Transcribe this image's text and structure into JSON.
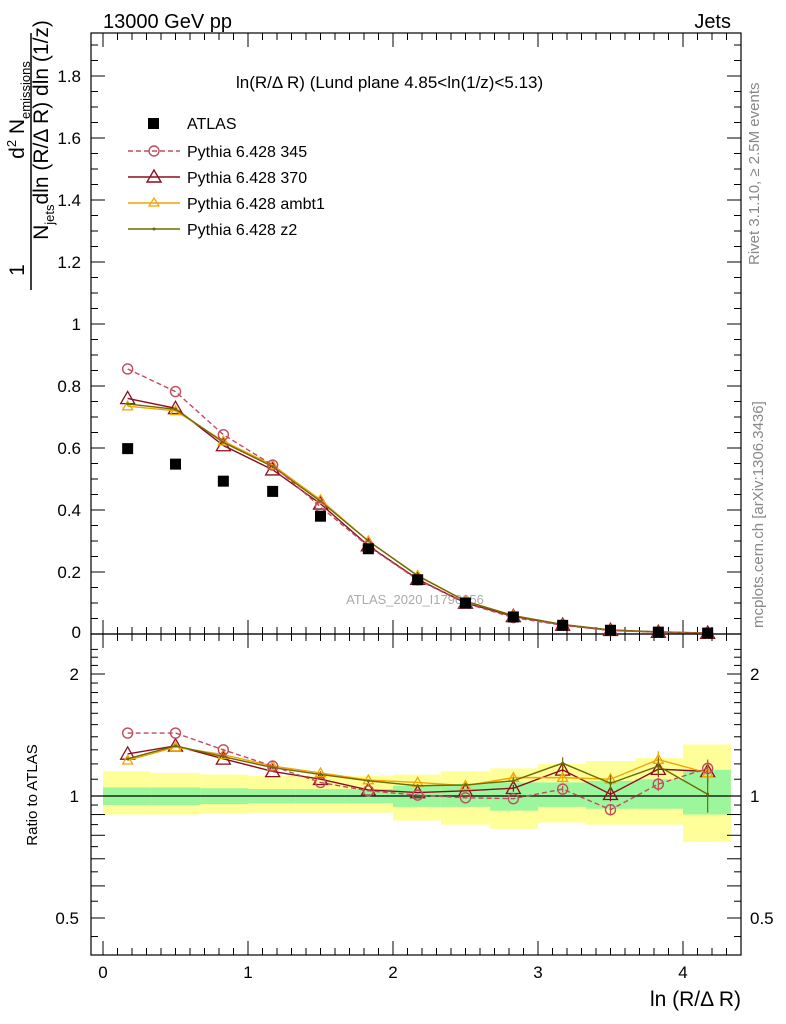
{
  "header": {
    "left": "13000 GeV pp",
    "right": "Jets"
  },
  "side_labels": {
    "rivet": "Rivet 3.1.10, ≥ 2.5M events",
    "mcplots": "mcplots.cern.ch [arXiv:1306.3436]"
  },
  "watermark": "ATLAS_2020_I1790256",
  "colors": {
    "atlas": "#000000",
    "p345": "#bf4d5e",
    "p370": "#8c0e1f",
    "ambt1": "#f2a400",
    "z2": "#6b6b00",
    "band_inner": "#9cf79c",
    "band_outer": "#ffff99"
  },
  "chart_data": [
    {
      "type": "scatter",
      "title": "ln(R/Δ R) (Lund plane 4.85<ln(1/z)<5.13)",
      "xlabel": "ln (R/Δ R)",
      "ylabel": "1/N_jets d²N_emissions / dln(R/Δ R) dln(1/z)",
      "xlim": [
        -0.1,
        4.4
      ],
      "ylim": [
        0,
        1.95
      ],
      "yticks": [
        0.2,
        0.4,
        0.6,
        0.8,
        1,
        1.2,
        1.4,
        1.6,
        1.8
      ],
      "ytick_labels": [
        "0.2",
        "0.4",
        "0.6",
        "0.8",
        "1",
        "1.2",
        "1.4",
        "1.6",
        "1.8"
      ],
      "legend_position": "top-left",
      "x": [
        0.17,
        0.5,
        0.83,
        1.17,
        1.5,
        1.83,
        2.17,
        2.5,
        2.83,
        3.17,
        3.5,
        3.83,
        4.17
      ],
      "series": [
        {
          "name": "ATLAS",
          "values": [
            0.598,
            0.548,
            0.493,
            0.46,
            0.38,
            0.275,
            0.175,
            0.1,
            0.055,
            0.028,
            0.012,
            0.006,
            0.003
          ]
        },
        {
          "name": "Pythia 6.428 345",
          "values": [
            0.855,
            0.782,
            0.643,
            0.545,
            0.41,
            0.283,
            0.175,
            0.099,
            0.053,
            0.028,
            0.011,
            0.006,
            0.003
          ]
        },
        {
          "name": "Pythia 6.428 370",
          "values": [
            0.76,
            0.728,
            0.608,
            0.53,
            0.42,
            0.285,
            0.177,
            0.1,
            0.057,
            0.029,
            0.012,
            0.006,
            0.003
          ]
        },
        {
          "name": "Pythia 6.428 ambt1",
          "values": [
            0.735,
            0.72,
            0.622,
            0.545,
            0.433,
            0.3,
            0.189,
            0.106,
            0.06,
            0.03,
            0.013,
            0.007,
            0.003
          ]
        },
        {
          "name": "Pythia 6.428 z2",
          "values": [
            0.742,
            0.725,
            0.618,
            0.54,
            0.428,
            0.3,
            0.188,
            0.106,
            0.059,
            0.031,
            0.013,
            0.007,
            0.003
          ]
        }
      ]
    },
    {
      "type": "line",
      "ylabel": "Ratio to ATLAS",
      "xlabel": "ln (R/Δ R)",
      "log_y": true,
      "ylim": [
        0.4,
        2.4
      ],
      "yticks": [
        0.5,
        1,
        2
      ],
      "ytick_labels": [
        "0.5",
        "1",
        "2"
      ],
      "xticks": [
        0,
        1,
        2,
        3,
        4
      ],
      "xtick_labels": [
        "0",
        "1",
        "2",
        "3",
        "4"
      ],
      "bin_edges": [
        0,
        0.33,
        0.67,
        1,
        1.33,
        1.67,
        2,
        2.33,
        2.67,
        3,
        3.33,
        3.67,
        4,
        4.33
      ],
      "band_inner": [
        [
          0.95,
          1.05
        ],
        [
          0.95,
          1.05
        ],
        [
          0.955,
          1.045
        ],
        [
          0.96,
          1.04
        ],
        [
          0.96,
          1.04
        ],
        [
          0.96,
          1.04
        ],
        [
          0.94,
          1.06
        ],
        [
          0.94,
          1.07
        ],
        [
          0.92,
          1.08
        ],
        [
          0.94,
          1.08
        ],
        [
          0.93,
          1.09
        ],
        [
          0.93,
          1.1
        ],
        [
          0.9,
          1.16
        ]
      ],
      "band_outer": [
        [
          0.9,
          1.15
        ],
        [
          0.9,
          1.14
        ],
        [
          0.905,
          1.13
        ],
        [
          0.91,
          1.12
        ],
        [
          0.91,
          1.12
        ],
        [
          0.91,
          1.12
        ],
        [
          0.87,
          1.13
        ],
        [
          0.85,
          1.15
        ],
        [
          0.83,
          1.17
        ],
        [
          0.86,
          1.2
        ],
        [
          0.85,
          1.22
        ],
        [
          0.85,
          1.24
        ],
        [
          0.77,
          1.34
        ]
      ],
      "x": [
        0.17,
        0.5,
        0.83,
        1.17,
        1.5,
        1.83,
        2.17,
        2.5,
        2.83,
        3.17,
        3.5,
        3.83,
        4.17
      ],
      "series": [
        {
          "name": "Pythia 6.428 345",
          "values": [
            1.43,
            1.43,
            1.3,
            1.185,
            1.08,
            1.03,
            1.005,
            0.99,
            0.985,
            1.04,
            0.925,
            1.07,
            1.17
          ],
          "errors": [
            0,
            0,
            0,
            0,
            0,
            0,
            0,
            0,
            0,
            0.02,
            0.03,
            0.04,
            0.06
          ]
        },
        {
          "name": "Pythia 6.428 370",
          "values": [
            1.27,
            1.33,
            1.235,
            1.15,
            1.1,
            1.035,
            1.02,
            1.03,
            1.045,
            1.16,
            1.01,
            1.165,
            1.15
          ],
          "errors": [
            0,
            0,
            0,
            0,
            0,
            0,
            0,
            0,
            0.02,
            0.03,
            0.04,
            0.05,
            0.07
          ]
        },
        {
          "name": "Pythia 6.428 ambt1",
          "values": [
            1.225,
            1.32,
            1.265,
            1.185,
            1.14,
            1.095,
            1.08,
            1.06,
            1.11,
            1.11,
            1.1,
            1.23,
            1.14
          ],
          "errors": [
            0,
            0,
            0,
            0,
            0,
            0,
            0,
            0,
            0.02,
            0.03,
            0.04,
            0.06,
            0.08
          ]
        },
        {
          "name": "Pythia 6.428 z2",
          "values": [
            1.235,
            1.33,
            1.25,
            1.175,
            1.13,
            1.09,
            1.06,
            1.065,
            1.09,
            1.205,
            1.075,
            1.185,
            1.01
          ],
          "errors": [
            0,
            0,
            0,
            0,
            0,
            0,
            0,
            0,
            0.02,
            0.04,
            0.05,
            0.06,
            0.1
          ]
        }
      ]
    }
  ]
}
